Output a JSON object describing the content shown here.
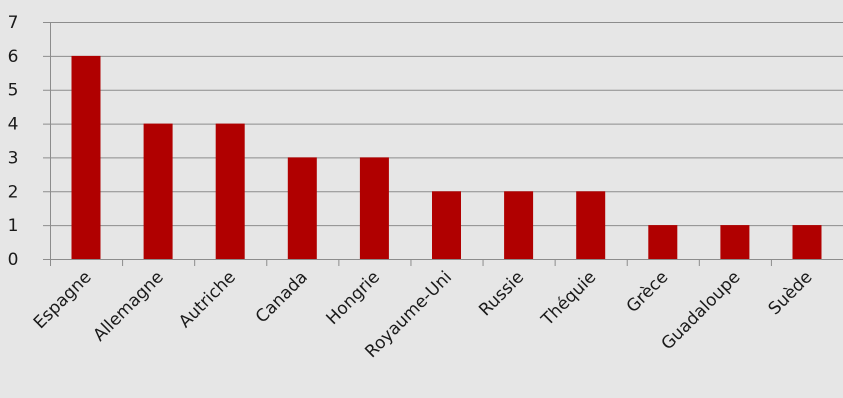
{
  "chart_data": {
    "type": "bar",
    "categories": [
      "Espagne",
      "Allemagne",
      "Autriche",
      "Canada",
      "Hongrie",
      "Royaume-Uni",
      "Russie",
      "Théquie",
      "Grèce",
      "Guadaloupe",
      "Suède"
    ],
    "values": [
      6,
      4,
      4,
      3,
      3,
      2,
      2,
      2,
      1,
      1,
      1
    ],
    "title": "",
    "xlabel": "",
    "ylabel": "",
    "ylim": [
      0,
      7
    ],
    "yticks": [
      0,
      1,
      2,
      3,
      4,
      5,
      6,
      7
    ],
    "grid": true,
    "legend": "none",
    "x_label_rotation": "diagonal",
    "bar_color": "#b00000",
    "gridline_color": "#8c8c8c",
    "background_color": "#e6e6e6"
  }
}
